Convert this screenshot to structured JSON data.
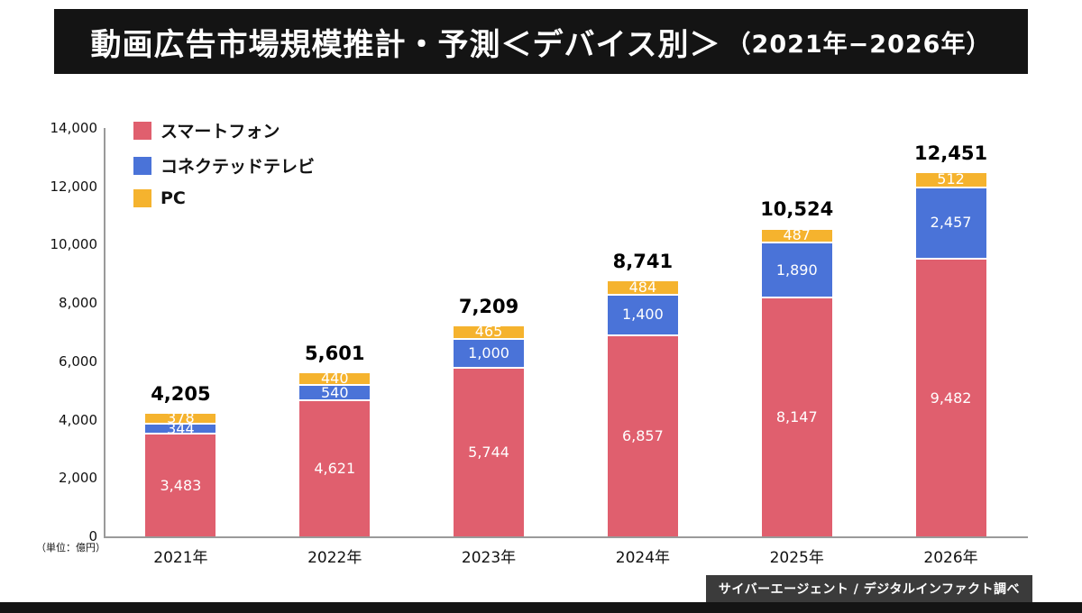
{
  "title": {
    "main": "動画広告市場規模推計・予測＜デバイス別＞",
    "period": "（2021年−2026年）"
  },
  "unit_label": "（単位：億円）",
  "source": "サイバーエージェント / デジタルインファクト調べ",
  "colors": {
    "smartphone": "#e05f6e",
    "ctv": "#4a73d8",
    "pc": "#f5b32e"
  },
  "chart_data": {
    "type": "bar",
    "stacked": true,
    "title": "動画広告市場規模推計・予測＜デバイス別＞（2021年−2026年）",
    "categories": [
      "2021年",
      "2022年",
      "2023年",
      "2024年",
      "2025年",
      "2026年"
    ],
    "series": [
      {
        "name": "スマートフォン",
        "color_key": "smartphone",
        "values": [
          3483,
          4621,
          5744,
          6857,
          8147,
          9482
        ]
      },
      {
        "name": "コネクテッドテレビ",
        "color_key": "ctv",
        "values": [
          344,
          540,
          1000,
          1400,
          1890,
          2457
        ]
      },
      {
        "name": "PC",
        "color_key": "pc",
        "values": [
          378,
          440,
          465,
          484,
          487,
          512
        ]
      }
    ],
    "totals": [
      4205,
      5601,
      7209,
      8741,
      10524,
      12451
    ],
    "xlabel": "",
    "ylabel": "（単位：億円）",
    "ylim": [
      0,
      14000
    ],
    "yticks": [
      0,
      2000,
      4000,
      6000,
      8000,
      10000,
      12000,
      14000
    ],
    "grid": false,
    "legend_position": "top-left"
  }
}
